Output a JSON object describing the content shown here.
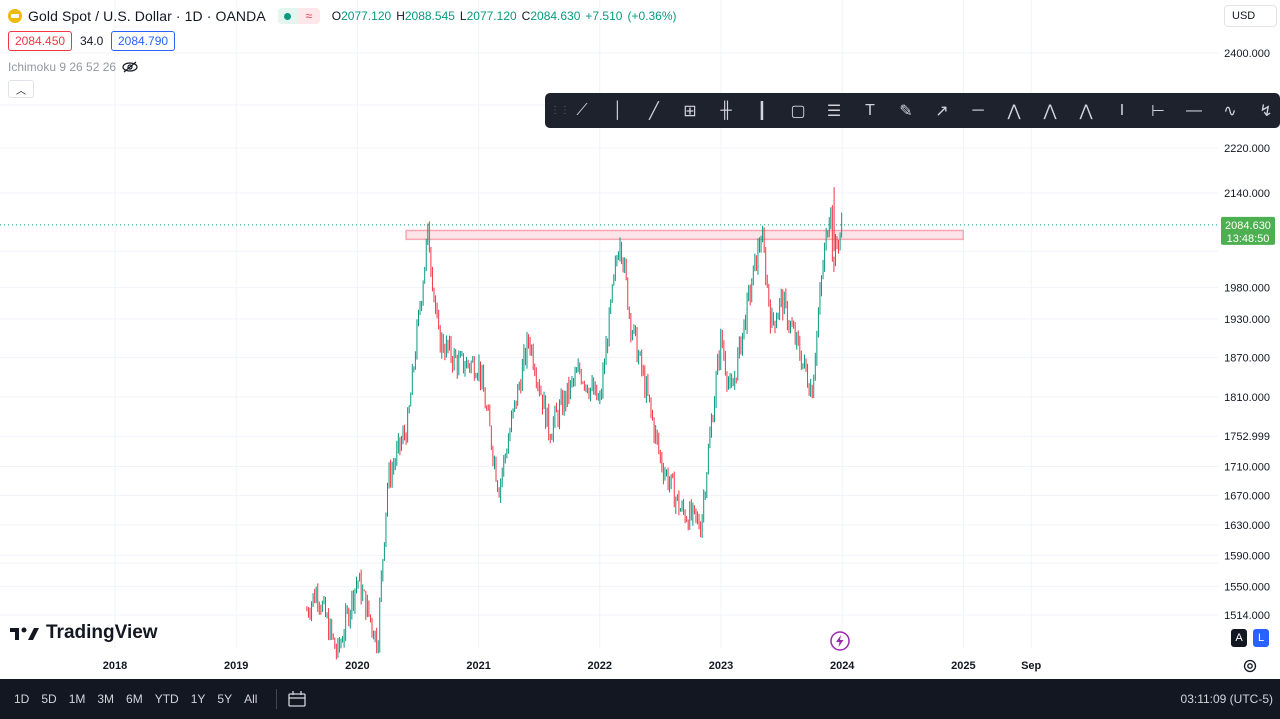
{
  "header": {
    "symbol": "Gold Spot / U.S. Dollar · 1D · OANDA",
    "ohlc": [
      {
        "key": "O",
        "value": "2077.120"
      },
      {
        "key": "H",
        "value": "2088.545"
      },
      {
        "key": "L",
        "value": "2077.120"
      },
      {
        "key": "C",
        "value": "2084.630"
      },
      {
        "key": "",
        "value": "+7.510"
      },
      {
        "key": "",
        "value": "(+0.36%)"
      }
    ],
    "bid": "2084.450",
    "spread": "34.0",
    "ask": "2084.790",
    "indicator": "Ichimoku 9 26 52 26",
    "currency": "USD"
  },
  "price_label": {
    "price": "2084.630",
    "countdown": "13:48:50"
  },
  "watermark": "TradingView",
  "al_buttons": [
    "A",
    "L"
  ],
  "bottom": {
    "timeframes": [
      "1D",
      "5D",
      "1M",
      "3M",
      "6M",
      "YTD",
      "1Y",
      "5Y",
      "All"
    ],
    "clock": "03:11:09 (UTC-5)"
  },
  "toolbar_icons": [
    "trend-line-tool-icon",
    "vertical-line-icon",
    "ray-icon",
    "crosshair-box-icon",
    "bars-pattern-icon",
    "price-range-icon",
    "rectangle-icon",
    "fib-lines-icon",
    "text-tool-icon",
    "brush-icon",
    "arrow-icon",
    "horizontal-point-icon",
    "pattern-ae-icon",
    "pattern-15-icon",
    "pattern-ac-icon",
    "date-range-icon",
    "measure-icon",
    "horizontal-line-icon",
    "path-icon",
    "curve-icon"
  ],
  "colors": {
    "up": "#089981",
    "down": "#f23645",
    "zone": "#f7a8b2",
    "price": "#4caf50"
  },
  "chart_data": {
    "type": "candlestick",
    "title": "Gold Spot / U.S. Dollar · 1D · OANDA",
    "x_ticks": [
      "2018",
      "2019",
      "2020",
      "2021",
      "2022",
      "2023",
      "2024",
      "2025",
      "Sep"
    ],
    "y_ticks": [
      "2400.000",
      "2220.000",
      "2140.000",
      "1980.000",
      "1930.000",
      "1870.000",
      "1810.000",
      "1752.999",
      "1710.000",
      "1670.000",
      "1630.000",
      "1590.000",
      "1550.000",
      "1514.000"
    ],
    "y_scale": "log",
    "last_price": 2084.63,
    "resistance_zone": {
      "from": "2020-08",
      "to": "2024-11",
      "low": 2060,
      "high": 2075
    },
    "price_path": [
      {
        "date": "2019-08",
        "price": 1520
      },
      {
        "date": "2019-09",
        "price": 1545
      },
      {
        "date": "2019-11",
        "price": 1465
      },
      {
        "date": "2020-01",
        "price": 1560
      },
      {
        "date": "2020-03",
        "price": 1480
      },
      {
        "date": "2020-04",
        "price": 1690
      },
      {
        "date": "2020-06",
        "price": 1770
      },
      {
        "date": "2020-08",
        "price": 2072
      },
      {
        "date": "2020-09",
        "price": 1900
      },
      {
        "date": "2020-11",
        "price": 1860
      },
      {
        "date": "2021-01",
        "price": 1860
      },
      {
        "date": "2021-03",
        "price": 1680
      },
      {
        "date": "2021-06",
        "price": 1900
      },
      {
        "date": "2021-08",
        "price": 1760
      },
      {
        "date": "2021-11",
        "price": 1850
      },
      {
        "date": "2022-01",
        "price": 1800
      },
      {
        "date": "2022-03",
        "price": 2070
      },
      {
        "date": "2022-04",
        "price": 1930
      },
      {
        "date": "2022-07",
        "price": 1720
      },
      {
        "date": "2022-09",
        "price": 1650
      },
      {
        "date": "2022-11",
        "price": 1630
      },
      {
        "date": "2023-01",
        "price": 1900
      },
      {
        "date": "2023-02",
        "price": 1810
      },
      {
        "date": "2023-05",
        "price": 2070
      },
      {
        "date": "2023-06",
        "price": 1920
      },
      {
        "date": "2023-07",
        "price": 1960
      },
      {
        "date": "2023-10",
        "price": 1820
      },
      {
        "date": "2023-11",
        "price": 2000
      },
      {
        "date": "2023-12",
        "price": 2150
      },
      {
        "date": "2023-12",
        "price": 2020
      },
      {
        "date": "2024-01",
        "price": 2084.63
      }
    ],
    "grid": true
  }
}
